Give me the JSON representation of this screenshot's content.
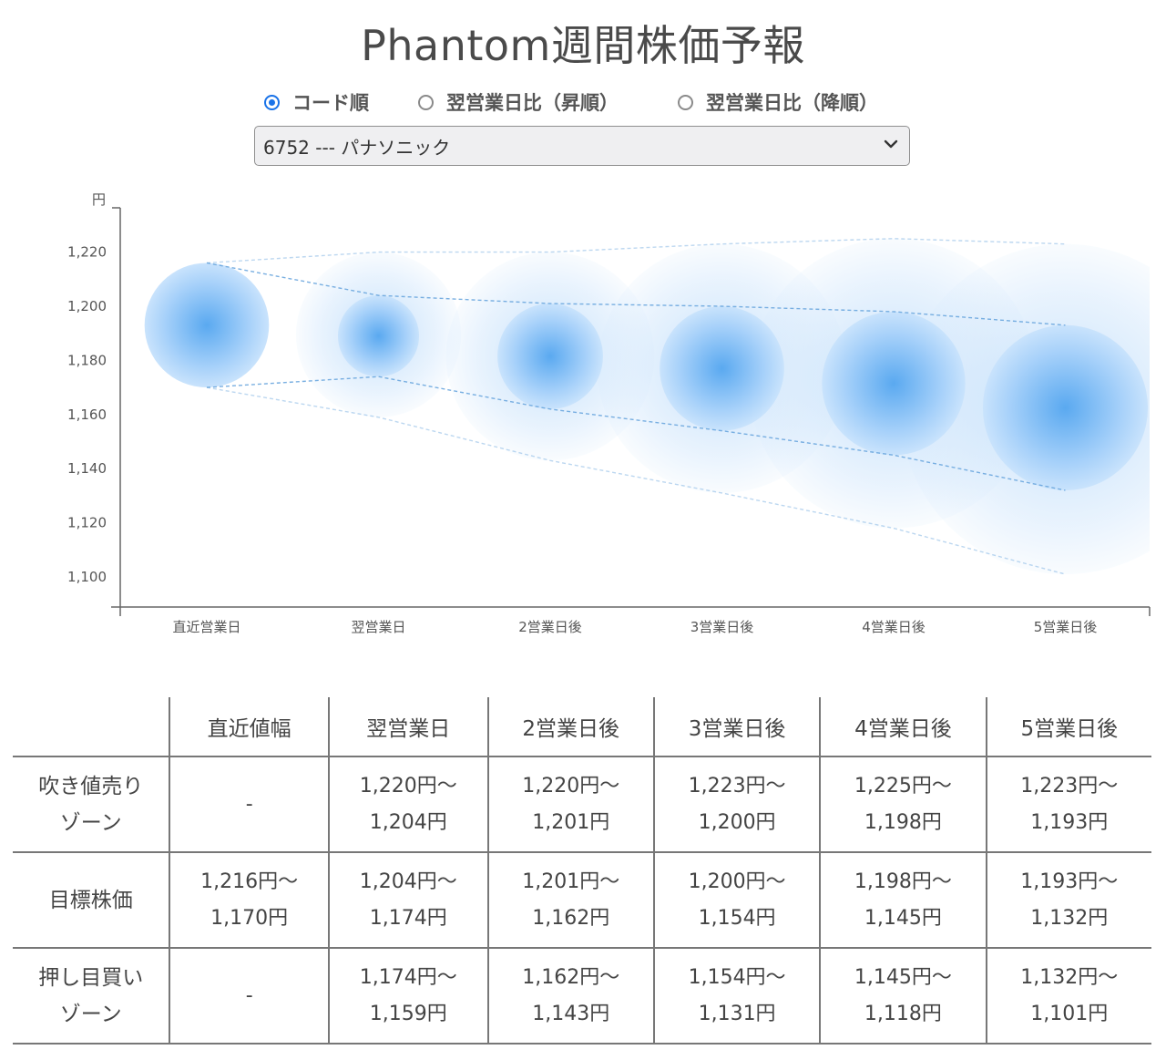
{
  "page": {
    "title": "Phantom週間株価予報",
    "sort_options": [
      {
        "label": "コード順",
        "checked": true
      },
      {
        "label": "翌営業日比（昇順）",
        "checked": false
      },
      {
        "label": "翌営業日比（降順）",
        "checked": false
      }
    ],
    "stock_select": {
      "value": "6752 --- パナソニック"
    }
  },
  "chart_data": {
    "type": "bubble-forecast",
    "y_unit_label": "円",
    "ylim": [
      1090,
      1238
    ],
    "yticks": [
      1100,
      1120,
      1140,
      1160,
      1180,
      1200,
      1220
    ],
    "ytick_labels": [
      "1,100",
      "1,120",
      "1,140",
      "1,160",
      "1,180",
      "1,200",
      "1,220"
    ],
    "categories": [
      "直近営業日",
      "翌営業日",
      "2営業日後",
      "3営業日後",
      "4営業日後",
      "5営業日後"
    ],
    "target_range": [
      [
        1216,
        1170
      ],
      [
        1204,
        1174
      ],
      [
        1201,
        1162
      ],
      [
        1200,
        1154
      ],
      [
        1198,
        1145
      ],
      [
        1193,
        1132
      ]
    ],
    "outer_range": [
      null,
      [
        1220,
        1159
      ],
      [
        1220,
        1143
      ],
      [
        1223,
        1131
      ],
      [
        1225,
        1118
      ],
      [
        1223,
        1101
      ]
    ],
    "colors": {
      "bubble": "#5aa9f0",
      "outer": "#d6e9fc",
      "guide": "#6aa6de",
      "axis": "#666666"
    },
    "grid": false,
    "legend": "none"
  },
  "table": {
    "headers": [
      "",
      "直近値幅",
      "翌営業日",
      "2営業日後",
      "3営業日後",
      "4営業日後",
      "5営業日後"
    ],
    "rows": [
      {
        "label_lines": [
          "吹き値売り",
          "ゾーン"
        ],
        "cells": [
          [
            "-"
          ],
          [
            "1,220円〜",
            "1,204円"
          ],
          [
            "1,220円〜",
            "1,201円"
          ],
          [
            "1,223円〜",
            "1,200円"
          ],
          [
            "1,225円〜",
            "1,198円"
          ],
          [
            "1,223円〜",
            "1,193円"
          ]
        ]
      },
      {
        "label_lines": [
          "目標株価"
        ],
        "cells": [
          [
            "1,216円〜",
            "1,170円"
          ],
          [
            "1,204円〜",
            "1,174円"
          ],
          [
            "1,201円〜",
            "1,162円"
          ],
          [
            "1,200円〜",
            "1,154円"
          ],
          [
            "1,198円〜",
            "1,145円"
          ],
          [
            "1,193円〜",
            "1,132円"
          ]
        ]
      },
      {
        "label_lines": [
          "押し目買い",
          "ゾーン"
        ],
        "cells": [
          [
            "-"
          ],
          [
            "1,174円〜",
            "1,159円"
          ],
          [
            "1,162円〜",
            "1,143円"
          ],
          [
            "1,154円〜",
            "1,131円"
          ],
          [
            "1,145円〜",
            "1,118円"
          ],
          [
            "1,132円〜",
            "1,101円"
          ]
        ]
      }
    ]
  }
}
